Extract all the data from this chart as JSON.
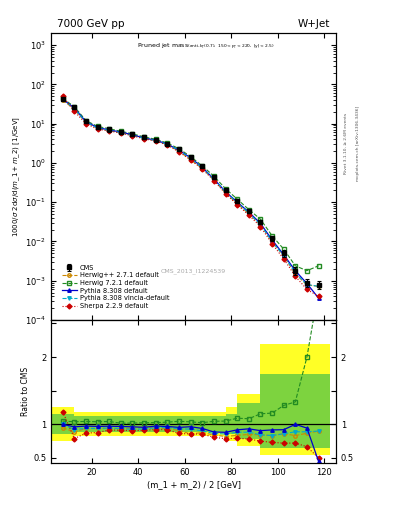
{
  "title_left": "7000 GeV pp",
  "title_right": "W+Jet",
  "watermark": "CMS_2013_I1224539",
  "ylabel_main": "1000/σ 2dσ/d(m_1 + m_2) [1/GeV]",
  "ylabel_ratio": "Ratio to CMS",
  "xlabel": "(m_1 + m_2) / 2 [GeV]",
  "right_label": "mcplots.cern.ch [arXiv:1306.3436]",
  "rivet_label": "Rivet 3.1.10, ≥ 2.6M events",
  "cms_x": [
    7.5,
    12.5,
    17.5,
    22.5,
    27.5,
    32.5,
    37.5,
    42.5,
    47.5,
    52.5,
    57.5,
    62.5,
    67.5,
    72.5,
    77.5,
    82.5,
    87.5,
    92.5,
    97.5,
    102.5,
    107.5,
    112.5,
    117.5
  ],
  "cms_y": [
    42,
    26,
    11.5,
    8.2,
    7.1,
    6.3,
    5.4,
    4.5,
    3.9,
    3.1,
    2.2,
    1.4,
    0.82,
    0.44,
    0.21,
    0.11,
    0.06,
    0.032,
    0.012,
    0.005,
    0.0018,
    0.0009,
    0.0008
  ],
  "cms_yerr_lo": [
    4,
    2.5,
    1.2,
    0.9,
    0.8,
    0.7,
    0.6,
    0.5,
    0.4,
    0.3,
    0.22,
    0.14,
    0.09,
    0.05,
    0.025,
    0.013,
    0.007,
    0.004,
    0.002,
    0.001,
    0.0004,
    0.0002,
    0.0002
  ],
  "cms_yerr_hi": [
    4,
    2.5,
    1.2,
    0.9,
    0.8,
    0.7,
    0.6,
    0.5,
    0.4,
    0.3,
    0.22,
    0.14,
    0.09,
    0.05,
    0.025,
    0.013,
    0.007,
    0.004,
    0.002,
    0.001,
    0.0004,
    0.0002,
    0.0002
  ],
  "herwig271_y": [
    40,
    23,
    10.8,
    7.7,
    6.7,
    5.9,
    5.1,
    4.3,
    3.7,
    2.9,
    2.0,
    1.2,
    0.72,
    0.37,
    0.172,
    0.092,
    0.051,
    0.027,
    0.01,
    0.0043,
    0.0015,
    0.00078,
    0.00072
  ],
  "herwig721_y": [
    44,
    27,
    12.0,
    8.5,
    7.4,
    6.4,
    5.5,
    4.6,
    4.0,
    3.2,
    2.3,
    1.45,
    0.84,
    0.46,
    0.22,
    0.12,
    0.065,
    0.037,
    0.014,
    0.0064,
    0.0024,
    0.0018,
    0.0024
  ],
  "pythia8_y": [
    42,
    25,
    11.2,
    7.95,
    6.9,
    6.1,
    5.2,
    4.3,
    3.8,
    3.0,
    2.1,
    1.35,
    0.77,
    0.39,
    0.185,
    0.101,
    0.056,
    0.029,
    0.011,
    0.0046,
    0.0018,
    0.00085,
    0.00036
  ],
  "pythia8v_y": [
    42,
    24,
    10.8,
    7.7,
    6.7,
    5.9,
    5.0,
    4.2,
    3.7,
    2.95,
    2.05,
    1.3,
    0.74,
    0.38,
    0.18,
    0.097,
    0.053,
    0.027,
    0.01,
    0.0043,
    0.0016,
    0.0008,
    0.00072
  ],
  "sherpa_y": [
    50,
    20.5,
    10.0,
    7.2,
    6.5,
    5.75,
    4.9,
    4.1,
    3.6,
    2.85,
    1.9,
    1.2,
    0.7,
    0.355,
    0.165,
    0.087,
    0.047,
    0.024,
    0.0088,
    0.0036,
    0.0013,
    0.0006,
    0.0004
  ],
  "ratio_x": [
    7.5,
    12.5,
    17.5,
    22.5,
    27.5,
    32.5,
    37.5,
    42.5,
    47.5,
    52.5,
    57.5,
    62.5,
    67.5,
    72.5,
    77.5,
    82.5,
    87.5,
    92.5,
    97.5,
    102.5,
    107.5,
    112.5,
    117.5
  ],
  "ratio_herwig271": [
    0.95,
    0.885,
    0.94,
    0.94,
    0.944,
    0.937,
    0.944,
    0.956,
    0.949,
    0.935,
    0.909,
    0.857,
    0.878,
    0.841,
    0.819,
    0.836,
    0.85,
    0.844,
    0.833,
    0.86,
    0.833,
    0.867,
    0.9
  ],
  "ratio_herwig721": [
    1.048,
    1.038,
    1.043,
    1.037,
    1.042,
    1.016,
    1.019,
    1.022,
    1.026,
    1.032,
    1.045,
    1.036,
    1.024,
    1.045,
    1.048,
    1.091,
    1.083,
    1.156,
    1.167,
    1.28,
    1.333,
    2.0,
    3.0
  ],
  "ratio_pythia8": [
    1.0,
    0.962,
    0.974,
    0.969,
    0.972,
    0.968,
    0.963,
    0.956,
    0.974,
    0.968,
    0.955,
    0.964,
    0.939,
    0.886,
    0.881,
    0.918,
    0.933,
    0.906,
    0.917,
    0.92,
    1.0,
    0.944,
    0.45
  ],
  "ratio_pythia8v": [
    1.0,
    0.923,
    0.939,
    0.939,
    0.944,
    0.937,
    0.926,
    0.933,
    0.949,
    0.952,
    0.932,
    0.929,
    0.902,
    0.864,
    0.857,
    0.882,
    0.883,
    0.844,
    0.833,
    0.86,
    0.889,
    0.889,
    0.9
  ],
  "ratio_sherpa": [
    1.19,
    0.788,
    0.87,
    0.878,
    0.915,
    0.913,
    0.907,
    0.911,
    0.923,
    0.919,
    0.864,
    0.857,
    0.854,
    0.807,
    0.786,
    0.791,
    0.783,
    0.75,
    0.733,
    0.72,
    0.722,
    0.667,
    0.5
  ],
  "band_x_edges": [
    2.5,
    7.5,
    12.5,
    17.5,
    22.5,
    27.5,
    32.5,
    37.5,
    42.5,
    47.5,
    52.5,
    57.5,
    62.5,
    67.5,
    72.5,
    77.5,
    82.5,
    87.5,
    92.5,
    97.5,
    102.5,
    107.5,
    112.5,
    122.5
  ],
  "band_yellow_lo": [
    0.75,
    0.75,
    0.82,
    0.82,
    0.82,
    0.82,
    0.82,
    0.82,
    0.82,
    0.82,
    0.82,
    0.82,
    0.82,
    0.82,
    0.82,
    0.75,
    0.68,
    0.68,
    0.55,
    0.55,
    0.55,
    0.55,
    0.55
  ],
  "band_yellow_hi": [
    1.25,
    1.25,
    1.18,
    1.18,
    1.18,
    1.18,
    1.18,
    1.18,
    1.18,
    1.18,
    1.18,
    1.18,
    1.18,
    1.18,
    1.18,
    1.25,
    1.45,
    1.45,
    2.2,
    2.2,
    2.2,
    2.2,
    2.2
  ],
  "band_green_lo": [
    0.85,
    0.85,
    0.88,
    0.88,
    0.88,
    0.88,
    0.88,
    0.88,
    0.88,
    0.88,
    0.88,
    0.88,
    0.88,
    0.88,
    0.88,
    0.85,
    0.78,
    0.78,
    0.65,
    0.65,
    0.65,
    0.65,
    0.65
  ],
  "band_green_hi": [
    1.15,
    1.15,
    1.12,
    1.12,
    1.12,
    1.12,
    1.12,
    1.12,
    1.12,
    1.12,
    1.12,
    1.12,
    1.12,
    1.12,
    1.12,
    1.15,
    1.32,
    1.32,
    1.75,
    1.75,
    1.75,
    1.75,
    1.75
  ],
  "color_cms": "#000000",
  "color_herwig271": "#cc8800",
  "color_herwig721": "#228b22",
  "color_pythia8": "#0000cc",
  "color_pythia8v": "#00aacc",
  "color_sherpa": "#cc0000",
  "ylim_main": [
    0.0001,
    2000
  ],
  "ylim_ratio": [
    0.42,
    2.55
  ],
  "xlim": [
    2.5,
    125
  ]
}
